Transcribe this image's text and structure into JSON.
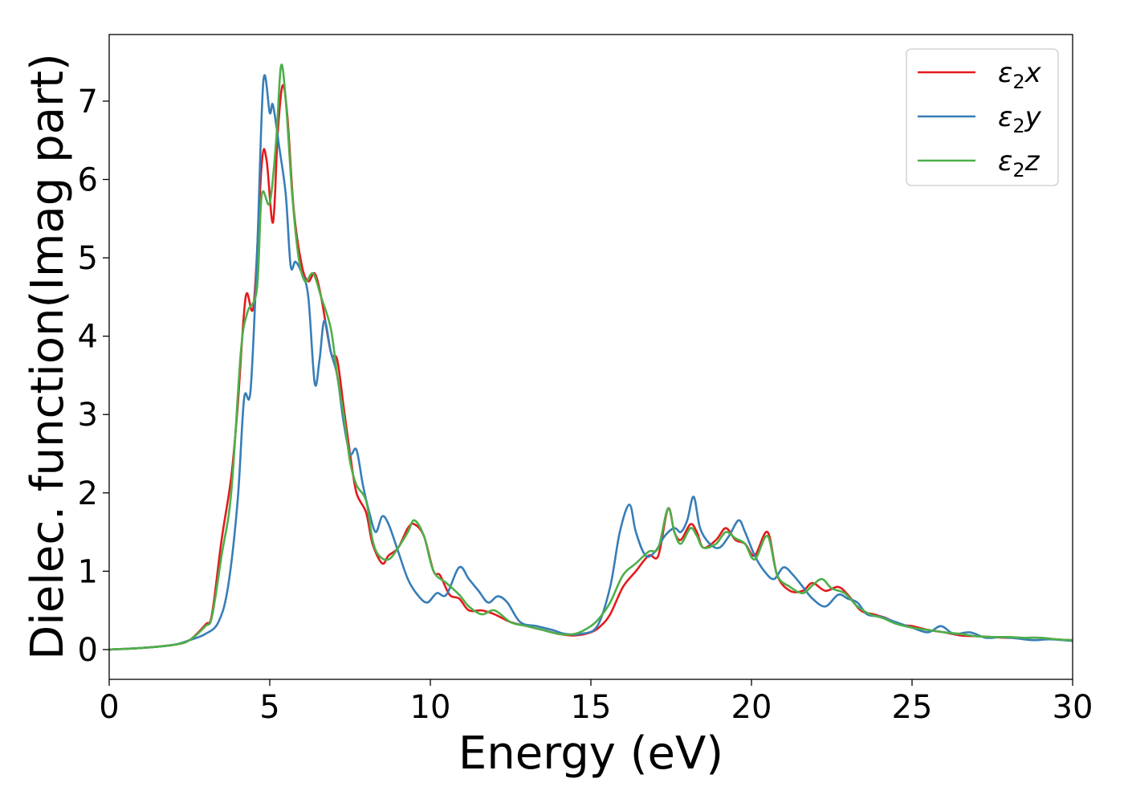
{
  "chart_data": {
    "type": "line",
    "xlabel": "Energy (eV)",
    "ylabel": "Dielec. function(Imag part)",
    "xlim": [
      0,
      30
    ],
    "ylim": [
      -0.38,
      7.85
    ],
    "xticks": [
      0,
      5,
      10,
      15,
      20,
      25,
      30
    ],
    "yticks": [
      0,
      1,
      2,
      3,
      4,
      5,
      6,
      7
    ],
    "grid": false,
    "legend_position": "top-right",
    "series": [
      {
        "name": "ε₂x",
        "legend": {
          "base": "ε",
          "sub": "2",
          "suffix": "x"
        },
        "color": "#e41a1c",
        "points": [
          [
            0,
            0
          ],
          [
            1,
            0.02
          ],
          [
            2,
            0.06
          ],
          [
            2.5,
            0.12
          ],
          [
            3,
            0.32
          ],
          [
            3.2,
            0.45
          ],
          [
            3.5,
            1.4
          ],
          [
            3.8,
            2.2
          ],
          [
            4.0,
            3.1
          ],
          [
            4.25,
            4.5
          ],
          [
            4.5,
            4.4
          ],
          [
            4.75,
            6.2
          ],
          [
            4.9,
            6.25
          ],
          [
            5.1,
            5.45
          ],
          [
            5.25,
            6.6
          ],
          [
            5.4,
            7.2
          ],
          [
            5.55,
            6.8
          ],
          [
            5.75,
            5.6
          ],
          [
            6.0,
            4.9
          ],
          [
            6.2,
            4.7
          ],
          [
            6.4,
            4.8
          ],
          [
            6.6,
            4.5
          ],
          [
            6.9,
            3.8
          ],
          [
            7.1,
            3.7
          ],
          [
            7.3,
            3.1
          ],
          [
            7.5,
            2.5
          ],
          [
            7.7,
            2.0
          ],
          [
            8.0,
            1.75
          ],
          [
            8.2,
            1.35
          ],
          [
            8.5,
            1.1
          ],
          [
            8.7,
            1.2
          ],
          [
            9.0,
            1.3
          ],
          [
            9.3,
            1.55
          ],
          [
            9.5,
            1.6
          ],
          [
            9.8,
            1.45
          ],
          [
            10.1,
            1.0
          ],
          [
            10.3,
            0.95
          ],
          [
            10.6,
            0.7
          ],
          [
            10.9,
            0.65
          ],
          [
            11.2,
            0.5
          ],
          [
            11.6,
            0.5
          ],
          [
            12.0,
            0.45
          ],
          [
            12.5,
            0.35
          ],
          [
            13.0,
            0.3
          ],
          [
            13.5,
            0.25
          ],
          [
            14.0,
            0.2
          ],
          [
            14.5,
            0.18
          ],
          [
            15.0,
            0.22
          ],
          [
            15.3,
            0.3
          ],
          [
            15.6,
            0.45
          ],
          [
            16.0,
            0.8
          ],
          [
            16.4,
            1.0
          ],
          [
            16.8,
            1.2
          ],
          [
            17.1,
            1.2
          ],
          [
            17.4,
            1.8
          ],
          [
            17.6,
            1.5
          ],
          [
            17.8,
            1.4
          ],
          [
            18.1,
            1.6
          ],
          [
            18.3,
            1.5
          ],
          [
            18.5,
            1.3
          ],
          [
            18.9,
            1.4
          ],
          [
            19.2,
            1.55
          ],
          [
            19.5,
            1.4
          ],
          [
            19.8,
            1.35
          ],
          [
            20.1,
            1.2
          ],
          [
            20.5,
            1.5
          ],
          [
            20.8,
            0.95
          ],
          [
            21.2,
            0.75
          ],
          [
            21.6,
            0.75
          ],
          [
            21.9,
            0.85
          ],
          [
            22.3,
            0.75
          ],
          [
            22.7,
            0.8
          ],
          [
            23.0,
            0.7
          ],
          [
            23.4,
            0.5
          ],
          [
            23.8,
            0.45
          ],
          [
            24.2,
            0.4
          ],
          [
            24.6,
            0.32
          ],
          [
            25.0,
            0.3
          ],
          [
            25.5,
            0.25
          ],
          [
            26.0,
            0.22
          ],
          [
            26.5,
            0.18
          ],
          [
            27.0,
            0.17
          ],
          [
            27.5,
            0.16
          ],
          [
            28.0,
            0.15
          ],
          [
            28.5,
            0.15
          ],
          [
            29.0,
            0.15
          ],
          [
            29.5,
            0.13
          ],
          [
            30.0,
            0.12
          ]
        ]
      },
      {
        "name": "ε₂y",
        "legend": {
          "base": "ε",
          "sub": "2",
          "suffix": "y"
        },
        "color": "#377eb8",
        "points": [
          [
            0,
            0
          ],
          [
            1,
            0.02
          ],
          [
            2,
            0.06
          ],
          [
            2.5,
            0.12
          ],
          [
            3,
            0.2
          ],
          [
            3.4,
            0.35
          ],
          [
            3.7,
            0.8
          ],
          [
            4.0,
            1.9
          ],
          [
            4.2,
            3.2
          ],
          [
            4.4,
            3.3
          ],
          [
            4.6,
            5.0
          ],
          [
            4.8,
            7.25
          ],
          [
            5.0,
            6.85
          ],
          [
            5.1,
            6.95
          ],
          [
            5.3,
            6.4
          ],
          [
            5.5,
            5.8
          ],
          [
            5.65,
            4.9
          ],
          [
            5.8,
            4.95
          ],
          [
            6.0,
            4.8
          ],
          [
            6.2,
            4.5
          ],
          [
            6.4,
            3.4
          ],
          [
            6.55,
            3.7
          ],
          [
            6.7,
            4.2
          ],
          [
            6.9,
            3.8
          ],
          [
            7.1,
            3.5
          ],
          [
            7.3,
            2.9
          ],
          [
            7.5,
            2.5
          ],
          [
            7.7,
            2.55
          ],
          [
            7.9,
            2.1
          ],
          [
            8.1,
            1.75
          ],
          [
            8.3,
            1.5
          ],
          [
            8.5,
            1.7
          ],
          [
            8.7,
            1.6
          ],
          [
            9.0,
            1.25
          ],
          [
            9.3,
            0.9
          ],
          [
            9.6,
            0.7
          ],
          [
            9.9,
            0.6
          ],
          [
            10.2,
            0.72
          ],
          [
            10.5,
            0.7
          ],
          [
            10.9,
            1.05
          ],
          [
            11.2,
            0.9
          ],
          [
            11.5,
            0.75
          ],
          [
            11.8,
            0.6
          ],
          [
            12.1,
            0.68
          ],
          [
            12.4,
            0.6
          ],
          [
            12.8,
            0.35
          ],
          [
            13.3,
            0.3
          ],
          [
            13.8,
            0.25
          ],
          [
            14.2,
            0.2
          ],
          [
            14.7,
            0.2
          ],
          [
            15.2,
            0.3
          ],
          [
            15.6,
            0.8
          ],
          [
            15.9,
            1.5
          ],
          [
            16.2,
            1.85
          ],
          [
            16.4,
            1.5
          ],
          [
            16.7,
            1.2
          ],
          [
            17.0,
            1.25
          ],
          [
            17.3,
            1.45
          ],
          [
            17.6,
            1.55
          ],
          [
            17.8,
            1.5
          ],
          [
            18.0,
            1.65
          ],
          [
            18.2,
            1.95
          ],
          [
            18.4,
            1.55
          ],
          [
            18.7,
            1.35
          ],
          [
            19.0,
            1.3
          ],
          [
            19.3,
            1.45
          ],
          [
            19.6,
            1.65
          ],
          [
            19.8,
            1.5
          ],
          [
            20.1,
            1.2
          ],
          [
            20.4,
            1.0
          ],
          [
            20.7,
            0.9
          ],
          [
            21.0,
            1.05
          ],
          [
            21.3,
            0.95
          ],
          [
            21.6,
            0.8
          ],
          [
            21.9,
            0.65
          ],
          [
            22.3,
            0.55
          ],
          [
            22.7,
            0.7
          ],
          [
            23.0,
            0.65
          ],
          [
            23.3,
            0.6
          ],
          [
            23.6,
            0.45
          ],
          [
            24.0,
            0.42
          ],
          [
            24.5,
            0.35
          ],
          [
            25.0,
            0.28
          ],
          [
            25.5,
            0.22
          ],
          [
            25.9,
            0.3
          ],
          [
            26.3,
            0.2
          ],
          [
            26.8,
            0.22
          ],
          [
            27.3,
            0.15
          ],
          [
            27.8,
            0.16
          ],
          [
            28.3,
            0.14
          ],
          [
            28.8,
            0.12
          ],
          [
            29.3,
            0.13
          ],
          [
            30.0,
            0.11
          ]
        ]
      },
      {
        "name": "ε₂z",
        "legend": {
          "base": "ε",
          "sub": "2",
          "suffix": "z"
        },
        "color": "#4daf4a",
        "points": [
          [
            0,
            0
          ],
          [
            1,
            0.02
          ],
          [
            2,
            0.06
          ],
          [
            2.5,
            0.12
          ],
          [
            3,
            0.3
          ],
          [
            3.2,
            0.42
          ],
          [
            3.5,
            1.2
          ],
          [
            3.8,
            2.0
          ],
          [
            4.1,
            3.8
          ],
          [
            4.3,
            4.3
          ],
          [
            4.6,
            4.6
          ],
          [
            4.75,
            5.8
          ],
          [
            5.0,
            5.7
          ],
          [
            5.2,
            6.5
          ],
          [
            5.35,
            7.45
          ],
          [
            5.5,
            7.0
          ],
          [
            5.7,
            5.8
          ],
          [
            5.9,
            5.0
          ],
          [
            6.1,
            4.7
          ],
          [
            6.35,
            4.8
          ],
          [
            6.6,
            4.5
          ],
          [
            6.9,
            4.1
          ],
          [
            7.1,
            3.5
          ],
          [
            7.3,
            3.0
          ],
          [
            7.5,
            2.4
          ],
          [
            7.7,
            2.1
          ],
          [
            8.0,
            1.9
          ],
          [
            8.2,
            1.4
          ],
          [
            8.4,
            1.2
          ],
          [
            8.7,
            1.15
          ],
          [
            9.0,
            1.3
          ],
          [
            9.3,
            1.5
          ],
          [
            9.5,
            1.65
          ],
          [
            9.8,
            1.45
          ],
          [
            10.1,
            1.0
          ],
          [
            10.5,
            0.85
          ],
          [
            10.9,
            0.7
          ],
          [
            11.2,
            0.55
          ],
          [
            11.6,
            0.45
          ],
          [
            12.0,
            0.5
          ],
          [
            12.5,
            0.35
          ],
          [
            13.0,
            0.3
          ],
          [
            13.5,
            0.25
          ],
          [
            14.0,
            0.2
          ],
          [
            14.5,
            0.2
          ],
          [
            15.0,
            0.3
          ],
          [
            15.3,
            0.42
          ],
          [
            15.6,
            0.6
          ],
          [
            16.0,
            0.95
          ],
          [
            16.4,
            1.1
          ],
          [
            16.8,
            1.25
          ],
          [
            17.1,
            1.3
          ],
          [
            17.4,
            1.8
          ],
          [
            17.6,
            1.5
          ],
          [
            17.8,
            1.35
          ],
          [
            18.1,
            1.55
          ],
          [
            18.3,
            1.45
          ],
          [
            18.5,
            1.3
          ],
          [
            18.9,
            1.35
          ],
          [
            19.2,
            1.5
          ],
          [
            19.5,
            1.42
          ],
          [
            19.8,
            1.35
          ],
          [
            20.1,
            1.15
          ],
          [
            20.5,
            1.45
          ],
          [
            20.8,
            0.95
          ],
          [
            21.2,
            0.8
          ],
          [
            21.6,
            0.72
          ],
          [
            21.9,
            0.82
          ],
          [
            22.2,
            0.9
          ],
          [
            22.5,
            0.78
          ],
          [
            22.9,
            0.72
          ],
          [
            23.3,
            0.55
          ],
          [
            23.7,
            0.45
          ],
          [
            24.1,
            0.4
          ],
          [
            24.5,
            0.33
          ],
          [
            25.0,
            0.28
          ],
          [
            25.5,
            0.25
          ],
          [
            26.0,
            0.22
          ],
          [
            26.5,
            0.2
          ],
          [
            27.0,
            0.17
          ],
          [
            27.5,
            0.16
          ],
          [
            28.0,
            0.16
          ],
          [
            28.5,
            0.15
          ],
          [
            29.0,
            0.15
          ],
          [
            29.5,
            0.13
          ],
          [
            30.0,
            0.12
          ]
        ]
      }
    ]
  }
}
